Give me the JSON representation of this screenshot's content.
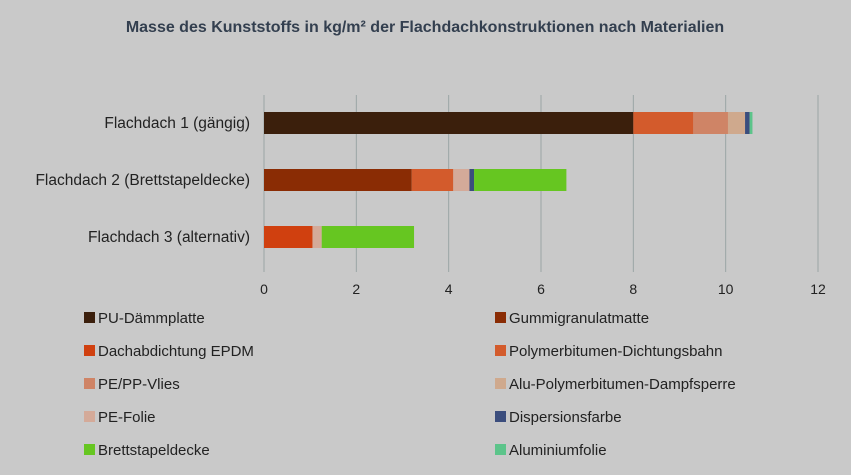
{
  "chart_data": {
    "type": "bar",
    "orientation": "horizontal",
    "stacked": true,
    "title": "Masse des Kunststoffs in kg/m² der Flachdachkonstruktionen nach Materialien",
    "categories": [
      "Flachdach 1 (gängig)",
      "Flachdach 2 (Brettstapeldecke)",
      "Flachdach 3 (alternativ)"
    ],
    "xlim": [
      0,
      12
    ],
    "xticks": [
      0,
      2,
      4,
      6,
      8,
      10,
      12
    ],
    "grid": true,
    "legend_position": "bottom",
    "series": [
      {
        "name": "PU-Dämmplatte",
        "color": "#3b1f0c",
        "values": [
          8.0,
          0,
          0
        ]
      },
      {
        "name": "Gummigranulatmatte",
        "color": "#8a2c04",
        "values": [
          0,
          3.2,
          0
        ]
      },
      {
        "name": "Dachabdichtung EPDM",
        "color": "#d0400f",
        "values": [
          0,
          0,
          1.05
        ]
      },
      {
        "name": "Polymerbitumen-Dichtungsbahn",
        "color": "#d35b2c",
        "values": [
          1.3,
          0.9,
          0
        ]
      },
      {
        "name": "PE/PP-Vlies",
        "color": "#cf8466",
        "values": [
          0.75,
          0,
          0
        ]
      },
      {
        "name": "Alu-Polymerbitumen-Dampfsperre",
        "color": "#cfa98d",
        "values": [
          0.37,
          0,
          0
        ]
      },
      {
        "name": "PE-Folie",
        "color": "#d4aa99",
        "values": [
          0,
          0.35,
          0.2
        ]
      },
      {
        "name": "Dispersionsfarbe",
        "color": "#3b4d7d",
        "values": [
          0.1,
          0.1,
          0
        ]
      },
      {
        "name": "Brettstapeldecke",
        "color": "#66c621",
        "values": [
          0,
          2.0,
          2.0
        ]
      },
      {
        "name": "Aluminiumfolie",
        "color": "#5cc48a",
        "values": [
          0.06,
          0,
          0
        ]
      }
    ]
  }
}
